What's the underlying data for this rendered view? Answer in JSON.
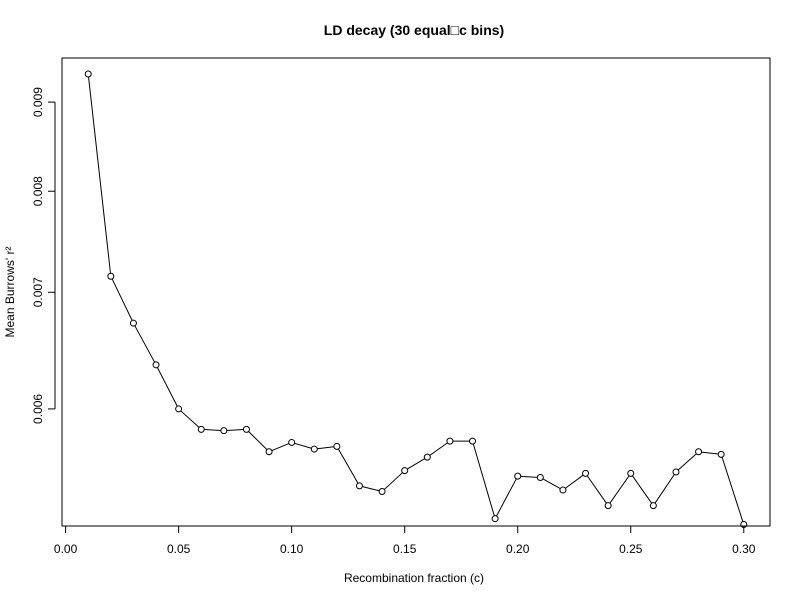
{
  "chart_data": {
    "type": "line",
    "title": "LD decay (30 equal□c bins)",
    "xlabel": "Recombination fraction (c)",
    "ylabel": "Mean Burrows' r²",
    "x_ticks": [
      "0.00",
      "0.05",
      "0.10",
      "0.15",
      "0.20",
      "0.25",
      "0.30"
    ],
    "y_ticks": [
      "0.006",
      "0.007",
      "0.008",
      "0.009"
    ],
    "x_tick_values": [
      0.0,
      0.05,
      0.1,
      0.15,
      0.2,
      0.25,
      0.3
    ],
    "y_tick_values": [
      0.006,
      0.007,
      0.008,
      0.009
    ],
    "xlim": [
      -0.0016,
      0.3116
    ],
    "ylim": [
      0.00514,
      0.00954
    ],
    "log_y": true,
    "grid": false,
    "series": [
      {
        "x": [
          0.01,
          0.02,
          0.03,
          0.04,
          0.05,
          0.06,
          0.07,
          0.08,
          0.09,
          0.1,
          0.11,
          0.12,
          0.13,
          0.14,
          0.15,
          0.16,
          0.17,
          0.18,
          0.19,
          0.2,
          0.21,
          0.22,
          0.23,
          0.24,
          0.25,
          0.26,
          0.27,
          0.28,
          0.29,
          0.3
        ],
        "y": [
          0.00934,
          0.00715,
          0.00672,
          0.00636,
          0.006,
          0.00584,
          0.00583,
          0.00584,
          0.00567,
          0.00574,
          0.00569,
          0.00571,
          0.00542,
          0.00538,
          0.00553,
          0.00563,
          0.00575,
          0.00575,
          0.00519,
          0.00549,
          0.00548,
          0.00539,
          0.00551,
          0.00528,
          0.00551,
          0.00528,
          0.00552,
          0.00567,
          0.00565,
          0.00515
        ]
      }
    ]
  }
}
